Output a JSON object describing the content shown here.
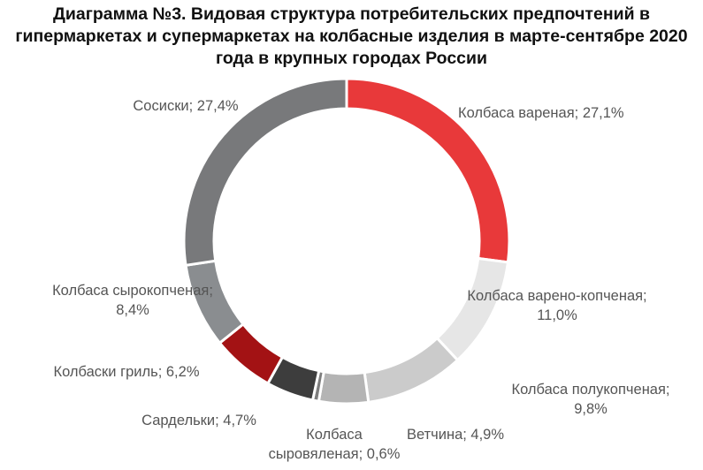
{
  "chart_data": {
    "type": "pie",
    "variant": "donut",
    "title": "Диаграмма №3. Видовая структура потребительских предпочтений в гипермаркетах и супермаркетах на колбасные изделия в марте-сентябре 2020 года в крупных городах России",
    "slices": [
      {
        "name": "Колбаса вареная",
        "value": 27.1,
        "label": [
          "Колбаса вареная; 27,1%"
        ],
        "color": "#e8393a"
      },
      {
        "name": "Колбаса варено-копченая",
        "value": 11.0,
        "label": [
          "Колбаса варено-копченая;",
          "11,0%"
        ],
        "color": "#e6e6e6"
      },
      {
        "name": "Колбаса полукопченая",
        "value": 9.8,
        "label": [
          "Колбаса полукопченая;",
          "9,8%"
        ],
        "color": "#cbcbcb"
      },
      {
        "name": "Ветчина",
        "value": 4.9,
        "label": [
          "Ветчина; 4,9%"
        ],
        "color": "#b4b4b4"
      },
      {
        "name": "Колбаса сыровяленая",
        "value": 0.6,
        "label": [
          "Колбаса",
          "сыровяленая; 0,6%"
        ],
        "color": "#7d7d7d"
      },
      {
        "name": "Сардельки",
        "value": 4.7,
        "label": [
          "Сардельки; 4,7%"
        ],
        "color": "#3d3d3d"
      },
      {
        "name": "Колбаски гриль",
        "value": 6.2,
        "label": [
          "Колбаски гриль; 6,2%"
        ],
        "color": "#a31214"
      },
      {
        "name": "Колбаса сырокопченая",
        "value": 8.4,
        "label": [
          "Колбаса сырокопченая;",
          "8,4%"
        ],
        "color": "#8a8d90"
      },
      {
        "name": "Сосиски",
        "value": 27.4,
        "label": [
          "Сосиски; 27,4%"
        ],
        "color": "#78797b"
      }
    ]
  }
}
